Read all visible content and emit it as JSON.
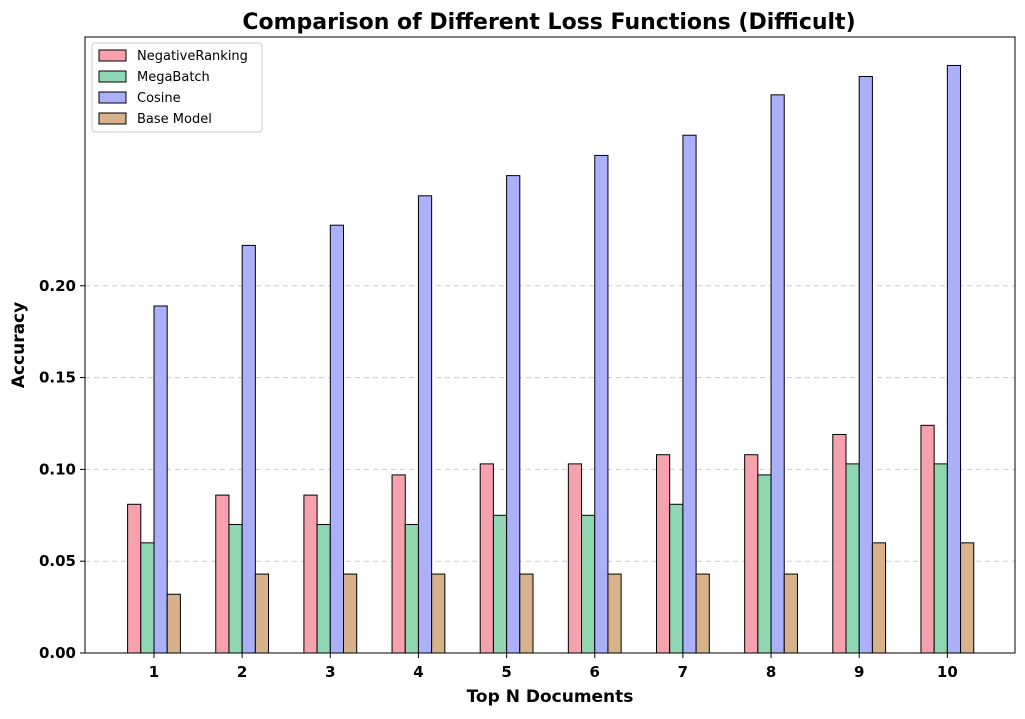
{
  "chart_data": {
    "type": "bar",
    "title": "Comparison of Different Loss Functions (Difficult)",
    "xlabel": "Top N Documents",
    "ylabel": "Accuracy",
    "categories": [
      "1",
      "2",
      "3",
      "4",
      "5",
      "6",
      "7",
      "8",
      "9",
      "10"
    ],
    "yticks": [
      "0.00",
      "0.05",
      "0.10",
      "0.15",
      "0.20"
    ],
    "ylim": [
      0,
      0.3355
    ],
    "grid": "y-dashed",
    "legend_position": "top-left",
    "series": [
      {
        "name": "NegativeRanking",
        "color": "#f7a1ad",
        "values": [
          0.081,
          0.086,
          0.086,
          0.097,
          0.103,
          0.103,
          0.108,
          0.108,
          0.119,
          0.124
        ]
      },
      {
        "name": "MegaBatch",
        "color": "#8fd7b3",
        "values": [
          0.06,
          0.07,
          0.07,
          0.07,
          0.075,
          0.075,
          0.081,
          0.097,
          0.103,
          0.103
        ]
      },
      {
        "name": "Cosine",
        "color": "#aab0fa",
        "values": [
          0.189,
          0.222,
          0.233,
          0.249,
          0.26,
          0.271,
          0.282,
          0.304,
          0.314,
          0.32
        ]
      },
      {
        "name": "Base Model",
        "color": "#d7b28a",
        "values": [
          0.032,
          0.043,
          0.043,
          0.043,
          0.043,
          0.043,
          0.043,
          0.043,
          0.06,
          0.06
        ]
      }
    ]
  }
}
